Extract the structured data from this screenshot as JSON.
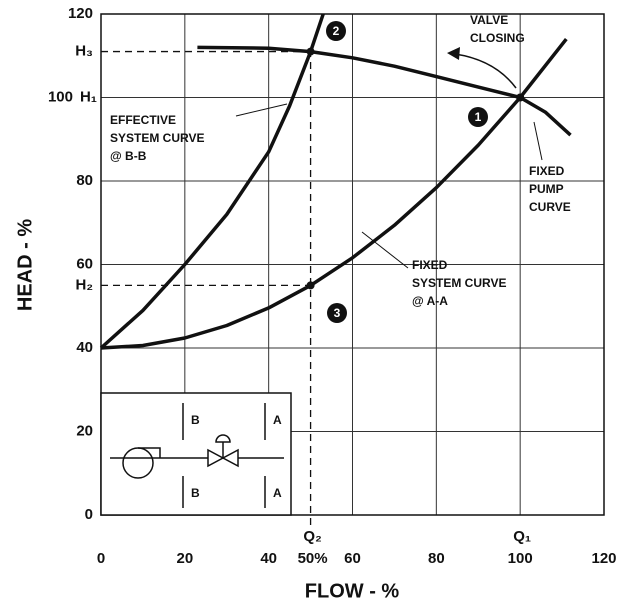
{
  "chart_data": {
    "type": "line",
    "xlabel": "FLOW - %",
    "ylabel": "HEAD - %",
    "xlim": [
      0,
      120
    ],
    "ylim": [
      0,
      120
    ],
    "xticks": [
      0,
      20,
      40,
      60,
      80,
      100,
      120
    ],
    "yticks": [
      0,
      20,
      40,
      60,
      80,
      100,
      120
    ],
    "grid": true,
    "series": [
      {
        "name": "FIXED PUMP CURVE",
        "color": "#111111",
        "x": [
          23,
          40,
          50,
          60,
          70,
          80,
          90,
          100,
          106,
          112
        ],
        "values": [
          112,
          111.8,
          111,
          109.5,
          107.5,
          105,
          102.5,
          100,
          96.5,
          91
        ]
      },
      {
        "name": "FIXED SYSTEM CURVE @ A-A",
        "color": "#111111",
        "x": [
          0,
          10,
          20,
          30,
          40,
          50,
          60,
          70,
          80,
          90,
          100,
          111
        ],
        "values": [
          40,
          40.6,
          42.4,
          45.4,
          49.6,
          55,
          61.6,
          69.4,
          78.4,
          88.6,
          100,
          114
        ]
      },
      {
        "name": "EFFECTIVE SYSTEM CURVE @ B-B",
        "color": "#111111",
        "x": [
          0,
          10,
          20,
          30,
          40,
          45,
          50,
          53
        ],
        "values": [
          40,
          49,
          60,
          72,
          87,
          98,
          111,
          120
        ]
      }
    ],
    "points": [
      {
        "label": "1",
        "x": 100,
        "y": 100
      },
      {
        "label": "2",
        "x": 50,
        "y": 111
      },
      {
        "label": "3",
        "x": 50,
        "y": 55
      }
    ],
    "reference_lines": [
      {
        "label": "H₃",
        "axis": "y",
        "value": 111
      },
      {
        "label": "H₂",
        "axis": "y",
        "value": 55
      },
      {
        "label": "Q₂",
        "axis": "x",
        "value": 50
      }
    ],
    "extra_labels": {
      "h1": "H₁",
      "q1": "Q₁",
      "q2_percent": "50%"
    },
    "annotation": "VALVE CLOSING",
    "inset": {
      "labels": [
        "B",
        "B",
        "A",
        "A"
      ]
    }
  }
}
